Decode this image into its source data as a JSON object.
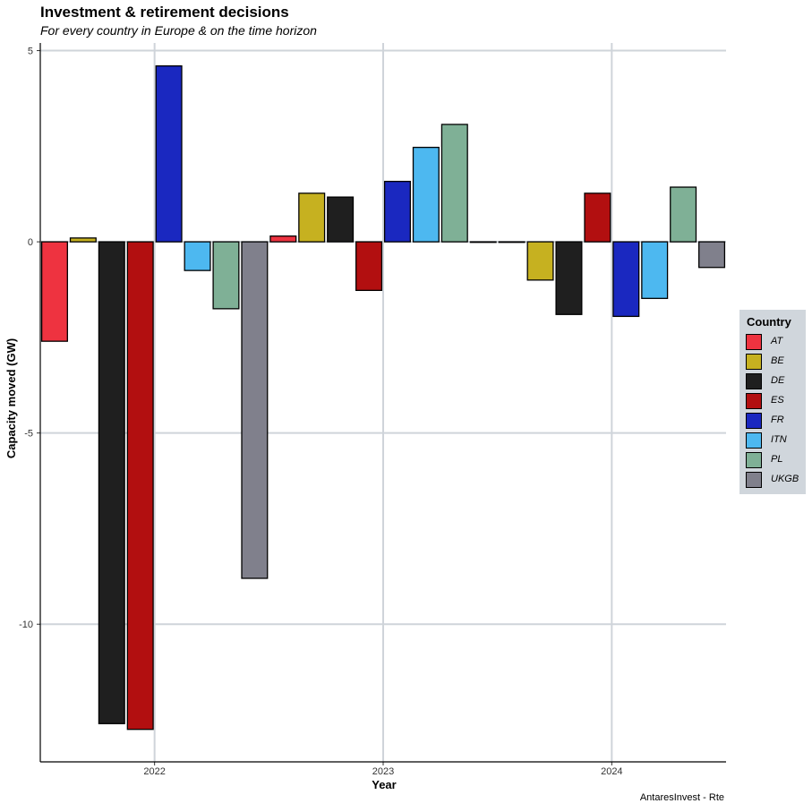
{
  "chart_data": {
    "type": "bar",
    "title": "Investment & retirement decisions",
    "subtitle": "For every country in Europe & on the time horizon",
    "xlabel": "Year",
    "ylabel": "Capacity moved (GW)",
    "caption": "AntaresInvest - Rte",
    "categories": [
      "2022",
      "2023",
      "2024"
    ],
    "ylim": [
      -13.6,
      5.2
    ],
    "yticks": [
      5,
      0,
      -5,
      -10
    ],
    "grid": true,
    "legend_title": "Country",
    "legend_position": "right",
    "series": [
      {
        "name": "AT",
        "color": "#ee3340",
        "values": [
          -2.6,
          0.15,
          0.0
        ]
      },
      {
        "name": "BE",
        "color": "#c6b120",
        "values": [
          0.1,
          1.27,
          -1.0
        ]
      },
      {
        "name": "DE",
        "color": "#1f1f1f",
        "values": [
          -12.6,
          1.17,
          -1.9
        ]
      },
      {
        "name": "ES",
        "color": "#b20f10",
        "values": [
          -12.75,
          -1.27,
          1.27
        ]
      },
      {
        "name": "FR",
        "color": "#1a28c0",
        "values": [
          4.6,
          1.58,
          -1.95
        ]
      },
      {
        "name": "ITN",
        "color": "#4db8f0",
        "values": [
          -0.75,
          2.47,
          -1.48
        ]
      },
      {
        "name": "PL",
        "color": "#7fb096",
        "values": [
          -1.75,
          3.07,
          1.43
        ]
      },
      {
        "name": "UKGB",
        "color": "#80808c",
        "values": [
          -8.8,
          0.0,
          -0.67
        ]
      }
    ]
  }
}
